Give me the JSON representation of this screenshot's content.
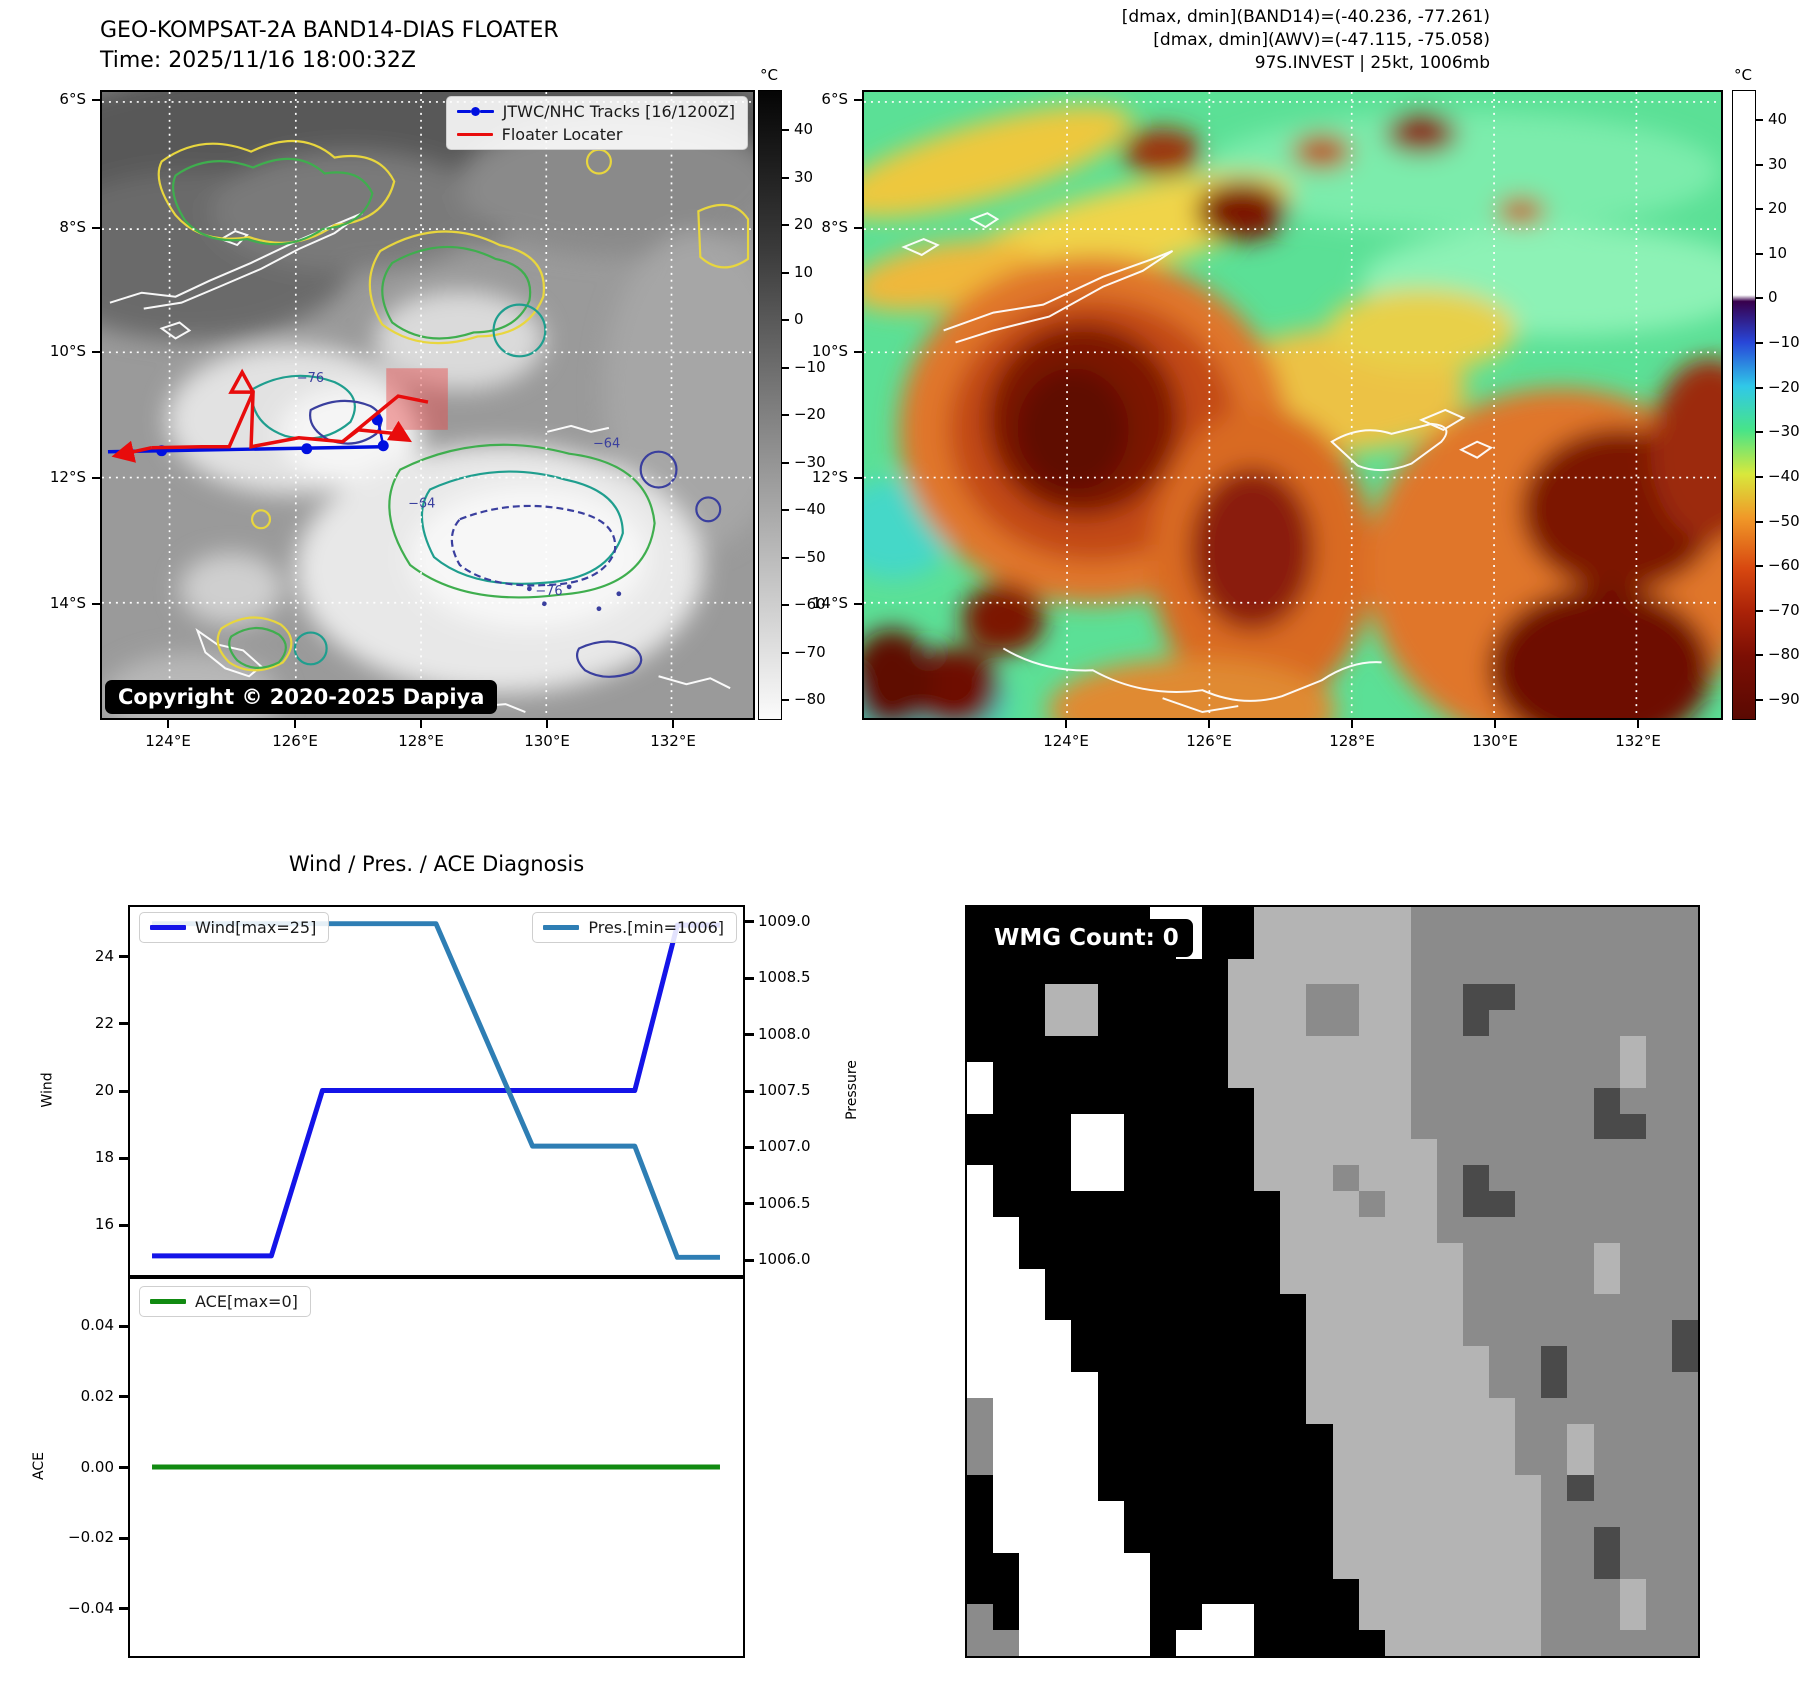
{
  "accent_colors": {
    "wind_line": "#1414e8",
    "pressure_line": "#2e7eb4",
    "ace_line": "#118a11",
    "track_blue": "#0010e0",
    "floater_red": "#e80c0c",
    "grid_dot_white": "#ffffff"
  },
  "left_panel": {
    "title_line1": "GEO-KOMPSAT-2A BAND14-DIAS FLOATER",
    "title_line2": "Time: 2025/11/16 18:00:32Z",
    "legend": {
      "track_label": "JTWC/NHC Tracks [16/1200Z]",
      "floater_label": "Floater Locater"
    },
    "copyright": "Copyright © 2020-2025 Dapiya",
    "lat_labels": [
      "6°S",
      "8°S",
      "10°S",
      "12°S",
      "14°S"
    ],
    "lon_labels": [
      "124°E",
      "126°E",
      "128°E",
      "130°E",
      "132°E"
    ],
    "contour_labels": [
      "−76",
      "−64",
      "−64",
      "−76"
    ],
    "colorbar": {
      "unit": "°C",
      "ticks": [
        "40",
        "30",
        "20",
        "10",
        "0",
        "−10",
        "−20",
        "−30",
        "−40",
        "−50",
        "−60",
        "−70",
        "−80"
      ]
    }
  },
  "right_panel": {
    "annotation_line1": "[dmax, dmin](BAND14)=(-40.236, -77.261)",
    "annotation_line2": "[dmax, dmin](AWV)=(-47.115, -75.058)",
    "annotation_line3": "97S.INVEST | 25kt, 1006mb",
    "lat_labels": [
      "6°S",
      "8°S",
      "10°S",
      "12°S",
      "14°S"
    ],
    "lon_labels": [
      "124°E",
      "126°E",
      "128°E",
      "130°E",
      "132°E"
    ],
    "colorbar": {
      "unit": "°C",
      "ticks": [
        "40",
        "30",
        "20",
        "10",
        "0",
        "−10",
        "−20",
        "−30",
        "−40",
        "−50",
        "−60",
        "−70",
        "−80",
        "−90"
      ]
    }
  },
  "chart_data": [
    {
      "type": "line",
      "title": "Wind / Pres. / ACE Diagnosis",
      "left_axis": {
        "label": "Wind",
        "ylim": [
          14.45,
          25.55
        ],
        "tick_values": [
          24,
          22,
          20,
          18,
          16
        ],
        "tick_labels": [
          "24",
          "22",
          "20",
          "18",
          "16"
        ]
      },
      "right_axis": {
        "label": "Pressure",
        "ylim": [
          1005.85,
          1009.15
        ],
        "tick_values": [
          1009.0,
          1008.5,
          1008.0,
          1007.5,
          1007.0,
          1006.5,
          1006.0
        ],
        "tick_labels": [
          "1009.0",
          "1008.5",
          "1008.0",
          "1007.5",
          "1007.0",
          "1006.5",
          "1006.0"
        ]
      },
      "series": [
        {
          "name": "Wind[max=25]",
          "axis": "left",
          "color": "#1414e8",
          "x": [
            0,
            0.21,
            0.3,
            0.85,
            0.925,
            1.0
          ],
          "y": [
            15,
            15,
            20,
            20,
            25,
            25
          ]
        },
        {
          "name": "Pres.[min=1006]",
          "axis": "right",
          "color": "#2e7eb4",
          "x": [
            0,
            0.5,
            0.67,
            0.85,
            0.925,
            1.0
          ],
          "y": [
            1009,
            1009,
            1007,
            1007,
            1006,
            1006
          ]
        }
      ]
    },
    {
      "type": "line",
      "left_axis": {
        "label": "ACE",
        "ylim": [
          -0.054,
          0.054
        ],
        "tick_values": [
          0.04,
          0.02,
          0.0,
          -0.02,
          -0.04
        ],
        "tick_labels": [
          "0.04",
          "0.02",
          "0.00",
          "−0.02",
          "−0.04"
        ]
      },
      "series": [
        {
          "name": "ACE[max=0]",
          "axis": "left",
          "color": "#118a11",
          "x": [
            0,
            1.0
          ],
          "y": [
            0,
            0
          ]
        }
      ]
    }
  ],
  "charts_header": {
    "title": "Wind / Pres. / ACE Diagnosis"
  },
  "chart_legends": {
    "wind": "Wind[max=25]",
    "pres": "Pres.[min=1006]",
    "ace": "ACE[max=0]"
  },
  "wmg": {
    "count_label": "WMG Count: 0",
    "palette": {
      "K": "#000000",
      "W": "#ffffff",
      "L": "#b4b4b4",
      "M": "#8b8b8b",
      "D": "#4a4a4a"
    },
    "grid_rows": [
      "KKKKKKKWWKKLLLLLLMMMMMMMMMMM",
      "KKKKKKKKWKKLLLLLLMMMMMMMMMMM",
      "KKKKKKKKKKLLLLLLLMMMMMMMMMMM",
      "KKKLLKKKKKLLLMMLLMMDDMMMMMMM",
      "KKKLLKKKKKLLLMMLLMMDMMMMMMMM",
      "KKKKKKKKKKLLLLLLLMMMMMMMMLMM",
      "WKKKKKKKKKLLLLLLLMMMMMMMMLMM",
      "WKKKKKKKKKKLLLLLLMMMMMMMDMMM",
      "KKKKWWKKKKKLLLLLLMMMMMMMDDMM",
      "KKKKWWKKKKKLLLLLLLMMMMMMMMMM",
      "WKKKWWKKKKKLLLMLLLMDMMMMMMMM",
      "WKKKKKKKKKKKLLLMLLMDDMMMMMMM",
      "WWKKKKKKKKKKLLLLLLMMMMMMMMMM",
      "WWKKKKKKKKKKLLLLLLLMMMMMLMMM",
      "WWWKKKKKKKKKLLLLLLLMMMMMLMMM",
      "WWWKKKKKKKKKKLLLLLLMMMMMMMMM",
      "WWWWKKKKKKKKKLLLLLLMMMMMMMMD",
      "WWWWKKKKKKKKKLLLLLLLMMDMMMMD",
      "WWWWWKKKKKKKKLLLLLLLMMDMMMMM",
      "MWWWWKKKKKKKKLLLLLLLLMMMMMMM",
      "MWWWWKKKKKKKKKLLLLLLLMMLMMMM",
      "MWWWWKKKKKKKKKLLLLLLLMMLMMMM",
      "KWWWWKKKKKKKKKLLLLLLLLMDMMMM",
      "KWWWWWKKKKKKKKLLLLLLLLMMMMMM",
      "KWWWWWKKKKKKKKLLLLLLLLMMDMMM",
      "KKWWWWWKKKKKKKLLLLLLLLMMDMMM",
      "KKWWWWWKKKKKKKKLLLLLLLMMMLMM",
      "MKWWWWWKKWWKKKKLLLLLLLMMMLMM",
      "MMWWWWWKWWWKKKKKLLLLLLMMMMMM"
    ]
  }
}
